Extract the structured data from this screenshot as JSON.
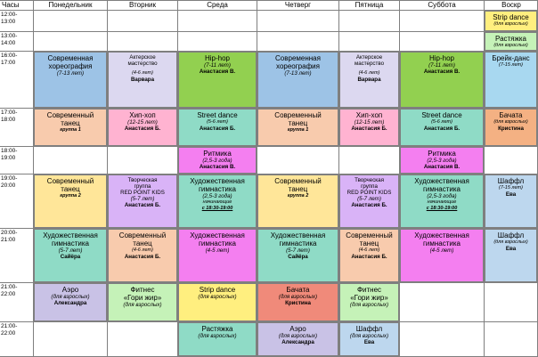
{
  "header": {
    "hours": "Часы",
    "days": [
      "Понедельник",
      "Вторник",
      "Среда",
      "Четверг",
      "Пятница",
      "Суббота",
      "Воскр"
    ]
  },
  "times": [
    "12:00-\n13:00",
    "13:00-\n14:00",
    "16:00-\n17:00",
    "17:00-\n18:00",
    "18:00-\n19:00",
    "19:00-\n20:00",
    "20:00-\n21:00",
    "21:00-\n22:00"
  ],
  "cells": {
    "sun_1": {
      "title": "Strip dance",
      "sub": "(для взрослых)"
    },
    "sun_2": {
      "title": "Растяжка",
      "sub": "(для взрослых)"
    },
    "sun_3": {
      "title": "Брейк-данс",
      "sub": "(7-15 лет)"
    },
    "mon_3": {
      "title1": "Современная",
      "title2": "хореография",
      "sub": "(7-13 лет)"
    },
    "tue_3": {
      "title1": "Актерское",
      "title2": "мастерство",
      "sub": "(4-6 лет)",
      "teacher": "Варвара"
    },
    "wed_3": {
      "title": "Hip-hop",
      "sub": "(7-11 лет)",
      "teacher": "Анастасия В."
    },
    "thu_3": {
      "title1": "Современная",
      "title2": "хореография",
      "sub": "(7-13 лет)"
    },
    "fri_3": {
      "title1": "Актерское",
      "title2": "мастерство",
      "sub": "(4-6 лет)",
      "teacher": "Варвара"
    },
    "sat_3": {
      "title": "Hip-hop",
      "sub": "(7-11 лет)",
      "teacher": "Анастасия В."
    },
    "mon_4": {
      "title1": "Современный",
      "title2": "танец",
      "sub": "(3-4 года)",
      "group": "группа 1"
    },
    "tue_4": {
      "title": "Хип-хоп",
      "sub": "(12-15 лет)",
      "teacher": "Анастасия Б."
    },
    "wed_4": {
      "title": "Street dance",
      "sub": "(5-6 лет)",
      "teacher": "Анастасия Б."
    },
    "thu_4": {
      "title1": "Современный",
      "title2": "танец",
      "sub": "(3-4 года)",
      "group": "группа 1"
    },
    "fri_4": {
      "title": "Хип-хоп",
      "sub": "(12-15 лет)",
      "teacher": "Анастасия Б."
    },
    "sat_4": {
      "title": "Street dance",
      "sub": "(5-6 лет)",
      "teacher": "Анастасия Б."
    },
    "sun_4": {
      "title": "Бачата",
      "sub": "(для взрослых)",
      "teacher": "Кристина"
    },
    "wed_5": {
      "title": "Ритмика",
      "sub": "(2,5-3 года)",
      "teacher": "Анастасия В."
    },
    "sat_5": {
      "title": "Ритмика",
      "sub": "(2,5-3 года)",
      "teacher": "Анастасия В."
    },
    "mon_6": {
      "title1": "Современный",
      "title2": "танец",
      "sub": "(3-4 года)",
      "group": "группа 2"
    },
    "tue_6": {
      "title1": "Творческая",
      "title2": "группа",
      "title3": "RED POINT KIDS",
      "sub": "(5-7 лет)",
      "teacher": "Анастасия Б."
    },
    "wed_6": {
      "title1": "Художественная",
      "title2": "гимнастика",
      "sub": "(2,5-3 года)",
      "note1": "начинающие",
      "note2": "с 18:30-19:00"
    },
    "thu_6": {
      "title1": "Современный",
      "title2": "танец",
      "sub": "(3-4 года)",
      "group": "группа 2"
    },
    "fri_6": {
      "title1": "Творческая",
      "title2": "группа",
      "title3": "RED POINT KIDS",
      "sub": "(5-7 лет)",
      "teacher": "Анастасия Б."
    },
    "sat_6": {
      "title1": "Художественная",
      "title2": "гимнастика",
      "sub": "(2,5-3 года)",
      "note1": "начинающие",
      "note2": "с 18:30-19:00"
    },
    "sun_6": {
      "title": "Шаффл",
      "sub": "(7-15 лет)",
      "teacher": "Ева"
    },
    "mon_7": {
      "title1": "Художественная",
      "title2": "гимнастика",
      "sub": "(5-7 лет)",
      "teacher": "Сайёра"
    },
    "tue_7": {
      "title1": "Современный",
      "title2": "танец",
      "sub": "(4-6 лет)",
      "teacher": "Анастасия Б."
    },
    "wed_7": {
      "title1": "Художественная",
      "title2": "гимнастика",
      "sub": "(4-5 лет)"
    },
    "thu_7": {
      "title1": "Художественная",
      "title2": "гимнастика",
      "sub": "(5-7 лет)",
      "teacher": "Сайёра"
    },
    "fri_7": {
      "title1": "Современный",
      "title2": "танец",
      "sub": "(4-6 лет)",
      "teacher": "Анастасия Б."
    },
    "sat_7": {
      "title1": "Художественная",
      "title2": "гимнастика",
      "sub": "(4-5 лет)"
    },
    "sun_7": {
      "title": "Шаффл",
      "sub": "(для взрослых)",
      "teacher": "Ева"
    },
    "mon_8": {
      "title": "Аэро",
      "sub": "(для взрослых)",
      "teacher": "Александра"
    },
    "tue_8": {
      "title1": "Фитнес",
      "title2": "«Гори жир»",
      "sub": "(для взрослых)"
    },
    "wed_8": {
      "title": "Strip dance",
      "sub": "(для взрослых)"
    },
    "thu_8": {
      "title": "Бачата",
      "sub": "(для взрослых)",
      "teacher": "Кристина"
    },
    "fri_8": {
      "title1": "Фитнес",
      "title2": "«Гори жир»",
      "sub": "(для взрослых)"
    },
    "wed_9": {
      "title": "Растяжка",
      "sub": "(для взрослых)"
    },
    "thu_9": {
      "title": "Аэро",
      "sub": "(для взрослых)",
      "teacher": "Александра"
    },
    "fri_9": {
      "title": "Шаффл",
      "sub": "(для взрослых)",
      "teacher": "Ева"
    }
  },
  "colors": {
    "blue": "#9dc3e6",
    "lavender": "#c9c2e6",
    "green": "#92d050",
    "orange": "#f8cbad",
    "pink": "#ffb3d1",
    "teal": "#8fdbc6",
    "magenta": "#f47ff0",
    "yellow": "#ffe699",
    "purple": "#c7a3f0",
    "coral": "#f4b183",
    "salmon": "#f08a7a",
    "lightpurple": "#d9b3f7",
    "lightgreen": "#c5f2b8",
    "sunyellow": "#ffef7f",
    "sunblue": "#bdd7ee"
  }
}
